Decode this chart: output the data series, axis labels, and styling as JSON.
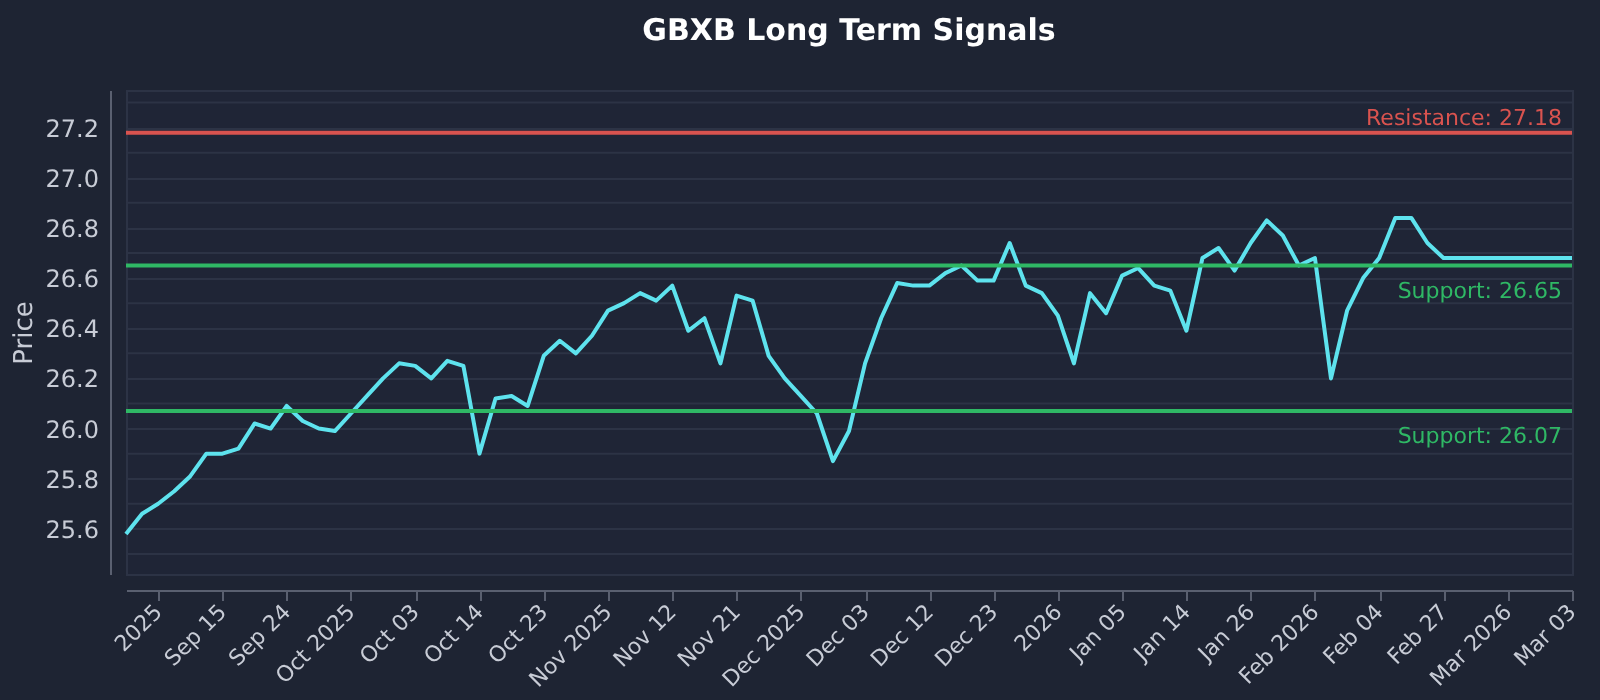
{
  "chart_data": {
    "type": "line",
    "title": "GBXB Long Term Signals",
    "ylabel": "Price",
    "categories": [
      null,
      null,
      "2025",
      null,
      null,
      null,
      "Sep 15",
      null,
      null,
      null,
      "Sep 24",
      null,
      null,
      null,
      "Oct 2025",
      null,
      null,
      null,
      "Oct 03",
      null,
      null,
      null,
      "Oct 14",
      null,
      null,
      null,
      "Oct 23",
      null,
      null,
      null,
      "Nov 2025",
      null,
      null,
      null,
      "Nov 12",
      null,
      null,
      null,
      "Nov 21",
      null,
      null,
      null,
      "Dec 2025",
      null,
      null,
      null,
      "Dec 03",
      null,
      null,
      null,
      "Dec 12",
      null,
      null,
      null,
      "Dec 23",
      null,
      null,
      null,
      "2026",
      null,
      null,
      null,
      "Jan 05",
      null,
      null,
      null,
      "Jan 14",
      null,
      null,
      null,
      "Jan 26",
      null,
      null,
      null,
      "Feb 2026",
      null,
      null,
      null,
      "Feb 04",
      null,
      null,
      null,
      "Feb 27",
      null,
      null,
      null,
      "Mar 2026",
      null,
      null,
      null,
      "Mar 03"
    ],
    "series": [
      {
        "color": "#5ee3ee",
        "values": [
          25.58,
          25.66,
          25.7,
          25.75,
          25.81,
          25.9,
          25.9,
          25.92,
          26.02,
          26.0,
          26.09,
          26.03,
          26.0,
          25.99,
          26.06,
          26.13,
          26.2,
          26.26,
          26.25,
          26.2,
          26.27,
          26.25,
          25.9,
          26.12,
          26.13,
          26.09,
          26.29,
          26.35,
          26.3,
          26.37,
          26.47,
          26.5,
          26.54,
          26.51,
          26.57,
          26.39,
          26.44,
          26.26,
          26.53,
          26.51,
          26.29,
          26.2,
          26.13,
          26.06,
          25.87,
          25.99,
          26.26,
          26.44,
          26.58,
          26.57,
          26.57,
          26.62,
          26.65,
          26.59,
          26.59,
          26.74,
          26.57,
          26.54,
          26.45,
          26.26,
          26.54,
          26.46,
          26.61,
          26.64,
          26.57,
          26.55,
          26.39,
          26.68,
          26.72,
          26.63,
          26.74,
          26.83,
          26.77,
          26.65,
          26.68,
          26.2,
          26.47,
          26.6,
          26.68,
          26.84,
          26.84,
          26.74,
          26.68,
          26.68,
          26.68,
          26.68,
          26.68,
          26.68,
          26.68,
          26.68,
          26.68
        ]
      }
    ],
    "ylim": [
      25.42,
      27.35
    ],
    "yticks": [
      {
        "value": 25.5,
        "label": null
      },
      25.6,
      {
        "value": 25.7,
        "label": null
      },
      25.8,
      {
        "value": 25.9,
        "label": null
      },
      {
        "value": 26.0,
        "label": "26.0"
      },
      {
        "value": 26.1,
        "label": null
      },
      26.2,
      {
        "value": 26.3,
        "label": null
      },
      26.4,
      {
        "value": 26.5,
        "label": null
      },
      26.6,
      {
        "value": 26.7,
        "label": null
      },
      26.8,
      {
        "value": 26.9,
        "label": null
      },
      {
        "value": 27.0,
        "label": "27.0"
      },
      {
        "value": 27.1,
        "label": null
      },
      27.2,
      {
        "value": 27.3,
        "label": null
      }
    ],
    "grid": "y",
    "marker": "none",
    "line_style": "solid",
    "ref_lines": [
      {
        "axis": "y",
        "value": 27.18,
        "label": "Resistance: 27.18",
        "color": "#d9534f"
      },
      {
        "axis": "y",
        "value": 26.65,
        "label": "Support: 26.65",
        "color": "#2fb865"
      },
      {
        "axis": "y",
        "value": 26.07,
        "label": "Support: 26.07",
        "color": "#2fb865"
      }
    ]
  }
}
